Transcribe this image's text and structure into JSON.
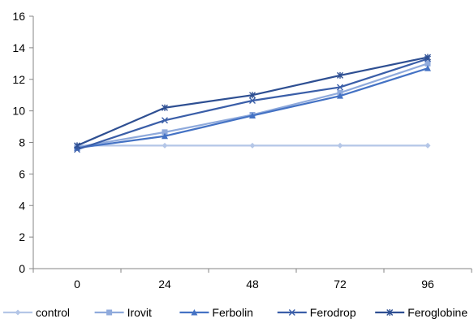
{
  "chart_data": {
    "type": "line",
    "title": "",
    "xlabel": "",
    "ylabel": "",
    "categories": [
      "0",
      "24",
      "48",
      "72",
      "96"
    ],
    "ylim": [
      0,
      16
    ],
    "yticks": [
      0,
      2,
      4,
      6,
      8,
      10,
      12,
      14,
      16
    ],
    "grid": false,
    "legend": "bottom",
    "series": [
      {
        "name": "control",
        "color": "#b4c6e7",
        "marker": "diamond",
        "values": [
          7.8,
          7.8,
          7.8,
          7.8,
          7.8
        ]
      },
      {
        "name": "Irovit",
        "color": "#8faadc",
        "marker": "square",
        "values": [
          7.7,
          8.65,
          9.75,
          11.15,
          13.0
        ]
      },
      {
        "name": "Ferbolin",
        "color": "#4472c4",
        "marker": "triangle",
        "values": [
          7.65,
          8.4,
          9.7,
          10.95,
          12.7
        ]
      },
      {
        "name": "Ferodrop",
        "color": "#3a5ea8",
        "marker": "x",
        "values": [
          7.55,
          9.4,
          10.65,
          11.5,
          13.3
        ]
      },
      {
        "name": "Feroglobine",
        "color": "#2e4f92",
        "marker": "asterisk",
        "values": [
          7.8,
          10.2,
          11.0,
          12.25,
          13.4
        ]
      }
    ]
  }
}
